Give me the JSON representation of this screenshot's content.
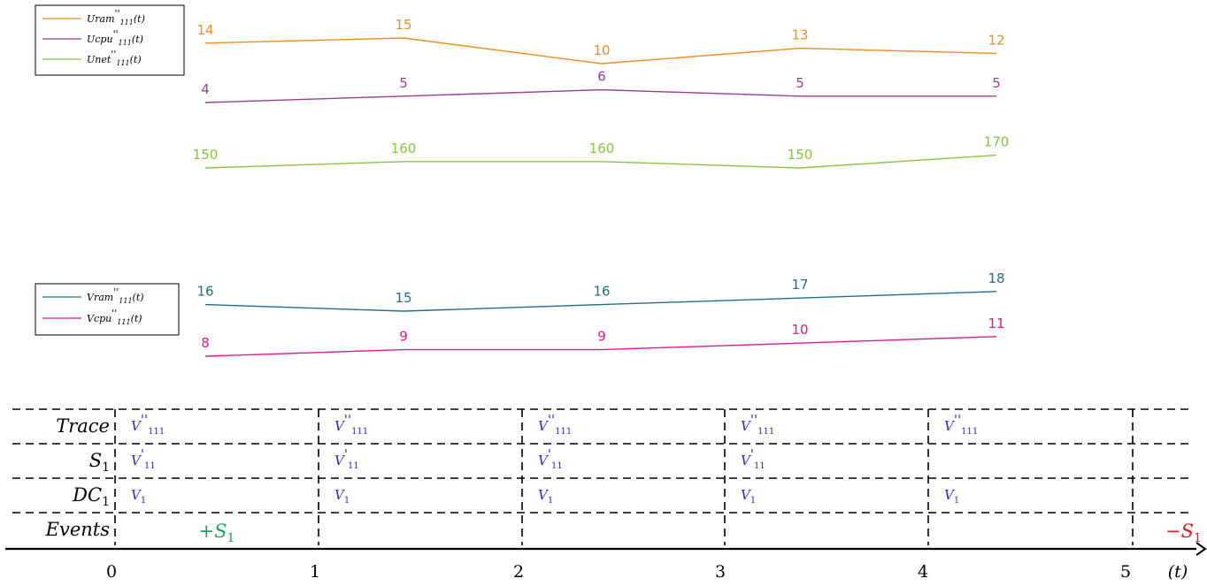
{
  "chart_data": [
    {
      "type": "line",
      "x": [
        0,
        1,
        2,
        3,
        4
      ],
      "legend_position": "top-left",
      "series": [
        {
          "name": "Uram''111(t)",
          "name_base": "Uram",
          "name_prime": "''",
          "name_sub": "111",
          "name_tail": "(t)",
          "color": "#f28c1c",
          "values": [
            14,
            15,
            10,
            13,
            12
          ],
          "labels": [
            "14",
            "15",
            "10",
            "13",
            "12"
          ]
        },
        {
          "name": "Ucpu''111(t)",
          "name_base": "Ucpu",
          "name_prime": "''",
          "name_sub": "111",
          "name_tail": "(t)",
          "color": "#9a3d93",
          "values": [
            4,
            5,
            6,
            5,
            5
          ],
          "labels": [
            "4",
            "5",
            "6",
            "5",
            "5"
          ]
        },
        {
          "name": "Unet''111(t)",
          "name_base": "Unet",
          "name_prime": "''",
          "name_sub": "111",
          "name_tail": "(t)",
          "color": "#86c540",
          "values": [
            150,
            160,
            160,
            150,
            170
          ],
          "labels": [
            "150",
            "160",
            "160",
            "150",
            "170"
          ]
        }
      ]
    },
    {
      "type": "line",
      "x": [
        0,
        1,
        2,
        3,
        4
      ],
      "legend_position": "left",
      "series": [
        {
          "name": "Vram''111(t)",
          "name_base": "Vram",
          "name_prime": "''",
          "name_sub": "111",
          "name_tail": "(t)",
          "color": "#1f6f8b",
          "values": [
            16,
            15,
            16,
            17,
            18
          ],
          "labels": [
            "16",
            "15",
            "16",
            "17",
            "18"
          ]
        },
        {
          "name": "Vcpu''111(t)",
          "name_base": "Vcpu",
          "name_prime": "''",
          "name_sub": "111",
          "name_tail": "(t)",
          "color": "#e6178e",
          "values": [
            8,
            9,
            9,
            10,
            11
          ],
          "labels": [
            "8",
            "9",
            "9",
            "10",
            "11"
          ]
        }
      ]
    }
  ],
  "timeline": {
    "axis_label": "(t)",
    "ticks": [
      "0",
      "1",
      "2",
      "3",
      "4",
      "5"
    ],
    "rows": [
      {
        "id": "trace",
        "label_base": "Trace",
        "label_sub": "",
        "cells": [
          {
            "col": 0,
            "base": "V",
            "prime": "''",
            "sub": "111"
          },
          {
            "col": 1,
            "base": "V",
            "prime": "''",
            "sub": "111"
          },
          {
            "col": 2,
            "base": "V",
            "prime": "''",
            "sub": "111"
          },
          {
            "col": 3,
            "base": "V",
            "prime": "''",
            "sub": "111"
          },
          {
            "col": 4,
            "base": "V",
            "prime": "''",
            "sub": "111"
          }
        ]
      },
      {
        "id": "s1",
        "label_base": "S",
        "label_sub": "1",
        "cells": [
          {
            "col": 0,
            "base": "V",
            "prime": "'",
            "sub": "11"
          },
          {
            "col": 1,
            "base": "V",
            "prime": "'",
            "sub": "11"
          },
          {
            "col": 2,
            "base": "V",
            "prime": "'",
            "sub": "11"
          },
          {
            "col": 3,
            "base": "V",
            "prime": "'",
            "sub": "11"
          }
        ]
      },
      {
        "id": "dc1",
        "label_base": "DC",
        "label_sub": "1",
        "cells": [
          {
            "col": 0,
            "base": "V",
            "prime": "",
            "sub": "1"
          },
          {
            "col": 1,
            "base": "V",
            "prime": "",
            "sub": "1"
          },
          {
            "col": 2,
            "base": "V",
            "prime": "",
            "sub": "1"
          },
          {
            "col": 3,
            "base": "V",
            "prime": "",
            "sub": "1"
          },
          {
            "col": 4,
            "base": "V",
            "prime": "",
            "sub": "1"
          }
        ]
      },
      {
        "id": "events",
        "label_base": "Events",
        "label_sub": "",
        "cells": []
      }
    ],
    "events": [
      {
        "text": "+S",
        "sub": "1",
        "at": 0.5,
        "color": "#1aa35a"
      },
      {
        "text": "−S",
        "sub": "1",
        "at": 5.25,
        "color": "#e8141a"
      }
    ]
  }
}
